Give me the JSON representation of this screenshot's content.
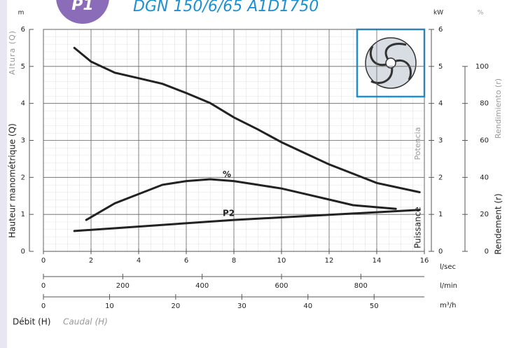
{
  "chart_data": {
    "type": "line",
    "title": "DGN 150/6/65 A1D1750",
    "badge": "P1",
    "x_label": "Débit (H)",
    "x_label_alt": "Caudal (H)",
    "y_label": "Hauteur manométrique (Q)",
    "y_label_alt": "Altura (Q)",
    "y2_label": "Puissance",
    "y2_label_alt": "Potencia",
    "y3_label": "Rendement (r)",
    "y3_label_alt": "Rendimiento (r)",
    "y_unit": "m",
    "y2_unit": "kW",
    "y3_unit": "%",
    "x_unit": "l/sec",
    "x2_unit": "l/min",
    "x3_unit": "m³/h",
    "xlim": [
      0,
      16
    ],
    "xticks": [
      0,
      2,
      4,
      6,
      8,
      10,
      12,
      14,
      16
    ],
    "x2lim": [
      0,
      960
    ],
    "x2ticks": [
      0,
      200,
      400,
      600,
      800
    ],
    "x3lim": [
      0,
      57.6
    ],
    "x3ticks": [
      0,
      10,
      20,
      30,
      40,
      50
    ],
    "ylim": [
      0,
      6
    ],
    "yticks": [
      0,
      1,
      2,
      3,
      4,
      5,
      6
    ],
    "y2lim": [
      0,
      6
    ],
    "y2ticks": [
      0,
      1,
      2,
      3,
      4,
      5,
      6
    ],
    "y3lim": [
      0,
      120
    ],
    "y3ticks": [
      0,
      20,
      40,
      60,
      80,
      100
    ],
    "grid": true,
    "series": [
      {
        "color": "#222222",
        "axis": "y",
        "x": [
          1.3,
          2,
          3,
          4,
          5,
          6,
          7,
          8,
          9,
          10,
          11,
          12,
          13,
          14,
          15.8
        ],
        "values": [
          5.5,
          5.13,
          4.83,
          4.68,
          4.53,
          4.28,
          4.01,
          3.62,
          3.3,
          2.95,
          2.65,
          2.35,
          2.1,
          1.85,
          1.6
        ]
      },
      {
        "name": "%",
        "color": "#222222",
        "axis": "y3",
        "x": [
          1.8,
          3,
          4,
          5,
          6,
          7,
          8,
          9,
          10,
          11,
          12,
          13,
          14.8
        ],
        "values": [
          17,
          26,
          31,
          36,
          38,
          39,
          38,
          36,
          34,
          31,
          28,
          25,
          23
        ]
      },
      {
        "name": "P2",
        "color": "#222222",
        "axis": "y2",
        "x": [
          1.3,
          8,
          15.8
        ],
        "values": [
          0.55,
          0.85,
          1.12
        ]
      }
    ]
  }
}
